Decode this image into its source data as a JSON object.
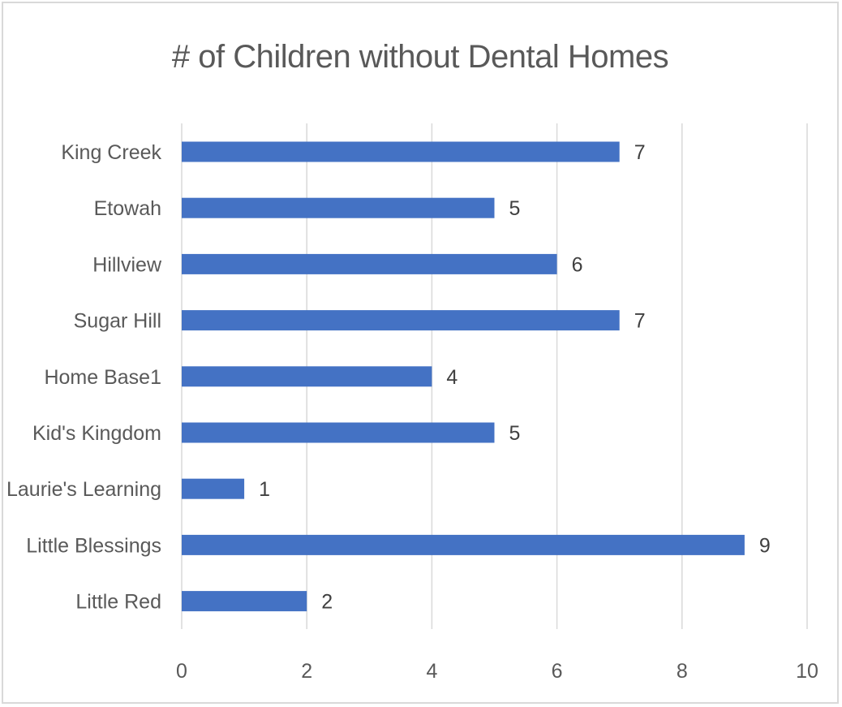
{
  "chart_data": {
    "type": "bar",
    "orientation": "horizontal",
    "title": "# of Children without Dental Homes",
    "categories": [
      "King Creek",
      "Etowah",
      "Hillview",
      "Sugar Hill",
      "Home Base1",
      "Kid's Kingdom",
      "Laurie's Learning",
      "Little Blessings",
      "Little Red"
    ],
    "values": [
      7,
      5,
      6,
      7,
      4,
      5,
      1,
      9,
      2
    ],
    "data_labels": [
      "7",
      "5",
      "6",
      "7",
      "4",
      "5",
      "1",
      "9",
      "2"
    ],
    "xlim": [
      0,
      10
    ],
    "x_ticks": [
      0,
      2,
      4,
      6,
      8,
      10
    ],
    "x_tick_labels": [
      "0",
      "2",
      "4",
      "6",
      "8",
      "10"
    ],
    "grid": "vertical",
    "legend": "none",
    "bar_color": "#4472c4",
    "grid_color": "#d9d9d9"
  }
}
